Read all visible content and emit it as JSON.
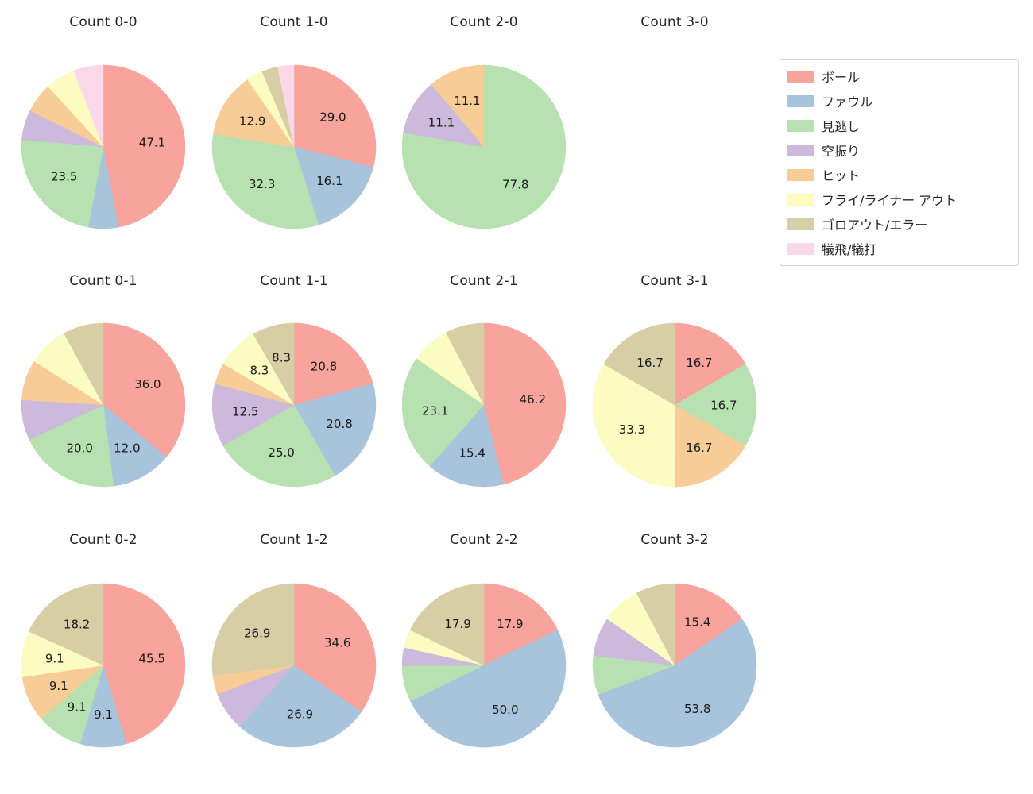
{
  "figure": {
    "background": "#ffffff",
    "text_color": "#262626"
  },
  "legend": {
    "position": "upper right",
    "items": [
      {
        "label": "ボール",
        "color": "#F8A39C"
      },
      {
        "label": "ファウル",
        "color": "#A7C4DC"
      },
      {
        "label": "見逃し",
        "color": "#B8E1B1"
      },
      {
        "label": "空振り",
        "color": "#CCB9DB"
      },
      {
        "label": "ヒット",
        "color": "#F8CC96"
      },
      {
        "label": "フライ/ライナー アウト",
        "color": "#FCFCC2"
      },
      {
        "label": "ゴロアウト/エラー",
        "color": "#D7CEA5"
      },
      {
        "label": "犠飛/犠打",
        "color": "#FBD8E9"
      }
    ]
  },
  "chart_data": [
    {
      "type": "pie",
      "title": "Count 0-0",
      "start_angle": "top",
      "direction": "clockwise",
      "grid": {
        "row": 0,
        "col": 0
      },
      "slices": [
        {
          "category": "ボール",
          "value": 47.1,
          "label": "47.1"
        },
        {
          "category": "ファウル",
          "value": 5.9,
          "label": ""
        },
        {
          "category": "見逃し",
          "value": 23.5,
          "label": "23.5"
        },
        {
          "category": "空振り",
          "value": 5.9,
          "label": ""
        },
        {
          "category": "ヒット",
          "value": 5.9,
          "label": ""
        },
        {
          "category": "フライ/ライナー アウト",
          "value": 5.9,
          "label": ""
        },
        {
          "category": "犠飛/犠打",
          "value": 5.9,
          "label": ""
        }
      ]
    },
    {
      "type": "pie",
      "title": "Count 1-0",
      "start_angle": "top",
      "direction": "clockwise",
      "grid": {
        "row": 0,
        "col": 1
      },
      "slices": [
        {
          "category": "ボール",
          "value": 29.0,
          "label": "29.0"
        },
        {
          "category": "ファウル",
          "value": 16.1,
          "label": "16.1"
        },
        {
          "category": "見逃し",
          "value": 32.3,
          "label": "32.3"
        },
        {
          "category": "ヒット",
          "value": 12.9,
          "label": "12.9"
        },
        {
          "category": "フライ/ライナー アウト",
          "value": 3.2,
          "label": ""
        },
        {
          "category": "ゴロアウト/エラー",
          "value": 3.2,
          "label": ""
        },
        {
          "category": "犠飛/犠打",
          "value": 3.2,
          "label": ""
        }
      ]
    },
    {
      "type": "pie",
      "title": "Count 2-0",
      "start_angle": "top",
      "direction": "clockwise",
      "grid": {
        "row": 0,
        "col": 2
      },
      "slices": [
        {
          "category": "見逃し",
          "value": 77.8,
          "label": "77.8"
        },
        {
          "category": "空振り",
          "value": 11.1,
          "label": "11.1"
        },
        {
          "category": "ヒット",
          "value": 11.1,
          "label": "11.1"
        }
      ]
    },
    {
      "type": "pie",
      "title": "Count 3-0",
      "start_angle": "top",
      "direction": "clockwise",
      "grid": {
        "row": 0,
        "col": 3
      },
      "slices": []
    },
    {
      "type": "pie",
      "title": "Count 0-1",
      "start_angle": "top",
      "direction": "clockwise",
      "grid": {
        "row": 1,
        "col": 0
      },
      "slices": [
        {
          "category": "ボール",
          "value": 36.0,
          "label": "36.0"
        },
        {
          "category": "ファウル",
          "value": 12.0,
          "label": "12.0"
        },
        {
          "category": "見逃し",
          "value": 20.0,
          "label": "20.0"
        },
        {
          "category": "空振り",
          "value": 8.0,
          "label": ""
        },
        {
          "category": "ヒット",
          "value": 8.0,
          "label": ""
        },
        {
          "category": "フライ/ライナー アウト",
          "value": 8.0,
          "label": ""
        },
        {
          "category": "ゴロアウト/エラー",
          "value": 8.0,
          "label": ""
        }
      ]
    },
    {
      "type": "pie",
      "title": "Count 1-1",
      "start_angle": "top",
      "direction": "clockwise",
      "grid": {
        "row": 1,
        "col": 1
      },
      "slices": [
        {
          "category": "ボール",
          "value": 20.8,
          "label": "20.8"
        },
        {
          "category": "ファウル",
          "value": 20.8,
          "label": "20.8"
        },
        {
          "category": "見逃し",
          "value": 25.0,
          "label": "25.0"
        },
        {
          "category": "空振り",
          "value": 12.5,
          "label": "12.5"
        },
        {
          "category": "ヒット",
          "value": 4.2,
          "label": ""
        },
        {
          "category": "フライ/ライナー アウト",
          "value": 8.3,
          "label": "8.3"
        },
        {
          "category": "ゴロアウト/エラー",
          "value": 8.3,
          "label": "8.3"
        }
      ]
    },
    {
      "type": "pie",
      "title": "Count 2-1",
      "start_angle": "top",
      "direction": "clockwise",
      "grid": {
        "row": 1,
        "col": 2
      },
      "slices": [
        {
          "category": "ボール",
          "value": 46.2,
          "label": "46.2"
        },
        {
          "category": "ファウル",
          "value": 15.4,
          "label": "15.4"
        },
        {
          "category": "見逃し",
          "value": 23.1,
          "label": "23.1"
        },
        {
          "category": "フライ/ライナー アウト",
          "value": 7.7,
          "label": ""
        },
        {
          "category": "ゴロアウト/エラー",
          "value": 7.7,
          "label": ""
        }
      ]
    },
    {
      "type": "pie",
      "title": "Count 3-1",
      "start_angle": "top",
      "direction": "clockwise",
      "grid": {
        "row": 1,
        "col": 3
      },
      "slices": [
        {
          "category": "ボール",
          "value": 16.7,
          "label": "16.7"
        },
        {
          "category": "見逃し",
          "value": 16.7,
          "label": "16.7"
        },
        {
          "category": "ヒット",
          "value": 16.7,
          "label": "16.7"
        },
        {
          "category": "フライ/ライナー アウト",
          "value": 33.3,
          "label": "33.3"
        },
        {
          "category": "ゴロアウト/エラー",
          "value": 16.7,
          "label": "16.7"
        }
      ]
    },
    {
      "type": "pie",
      "title": "Count 0-2",
      "start_angle": "top",
      "direction": "clockwise",
      "grid": {
        "row": 2,
        "col": 0
      },
      "slices": [
        {
          "category": "ボール",
          "value": 45.5,
          "label": "45.5"
        },
        {
          "category": "ファウル",
          "value": 9.1,
          "label": "9.1"
        },
        {
          "category": "見逃し",
          "value": 9.1,
          "label": "9.1"
        },
        {
          "category": "ヒット",
          "value": 9.1,
          "label": "9.1"
        },
        {
          "category": "フライ/ライナー アウト",
          "value": 9.1,
          "label": "9.1"
        },
        {
          "category": "ゴロアウト/エラー",
          "value": 18.2,
          "label": "18.2"
        }
      ]
    },
    {
      "type": "pie",
      "title": "Count 1-2",
      "start_angle": "top",
      "direction": "clockwise",
      "grid": {
        "row": 2,
        "col": 1
      },
      "slices": [
        {
          "category": "ボール",
          "value": 34.6,
          "label": "34.6"
        },
        {
          "category": "ファウル",
          "value": 26.9,
          "label": "26.9"
        },
        {
          "category": "空振り",
          "value": 7.7,
          "label": ""
        },
        {
          "category": "ヒット",
          "value": 3.8,
          "label": ""
        },
        {
          "category": "ゴロアウト/エラー",
          "value": 26.9,
          "label": "26.9"
        }
      ]
    },
    {
      "type": "pie",
      "title": "Count 2-2",
      "start_angle": "top",
      "direction": "clockwise",
      "grid": {
        "row": 2,
        "col": 2
      },
      "slices": [
        {
          "category": "ボール",
          "value": 17.9,
          "label": "17.9"
        },
        {
          "category": "ファウル",
          "value": 50.0,
          "label": "50.0"
        },
        {
          "category": "見逃し",
          "value": 7.1,
          "label": ""
        },
        {
          "category": "空振り",
          "value": 3.6,
          "label": ""
        },
        {
          "category": "フライ/ライナー アウト",
          "value": 3.6,
          "label": ""
        },
        {
          "category": "ゴロアウト/エラー",
          "value": 17.9,
          "label": "17.9"
        }
      ]
    },
    {
      "type": "pie",
      "title": "Count 3-2",
      "start_angle": "top",
      "direction": "clockwise",
      "grid": {
        "row": 2,
        "col": 3
      },
      "slices": [
        {
          "category": "ボール",
          "value": 15.4,
          "label": "15.4"
        },
        {
          "category": "ファウル",
          "value": 53.8,
          "label": "53.8"
        },
        {
          "category": "見逃し",
          "value": 7.7,
          "label": ""
        },
        {
          "category": "空振り",
          "value": 7.7,
          "label": ""
        },
        {
          "category": "フライ/ライナー アウト",
          "value": 7.7,
          "label": ""
        },
        {
          "category": "ゴロアウト/エラー",
          "value": 7.7,
          "label": ""
        }
      ]
    }
  ]
}
